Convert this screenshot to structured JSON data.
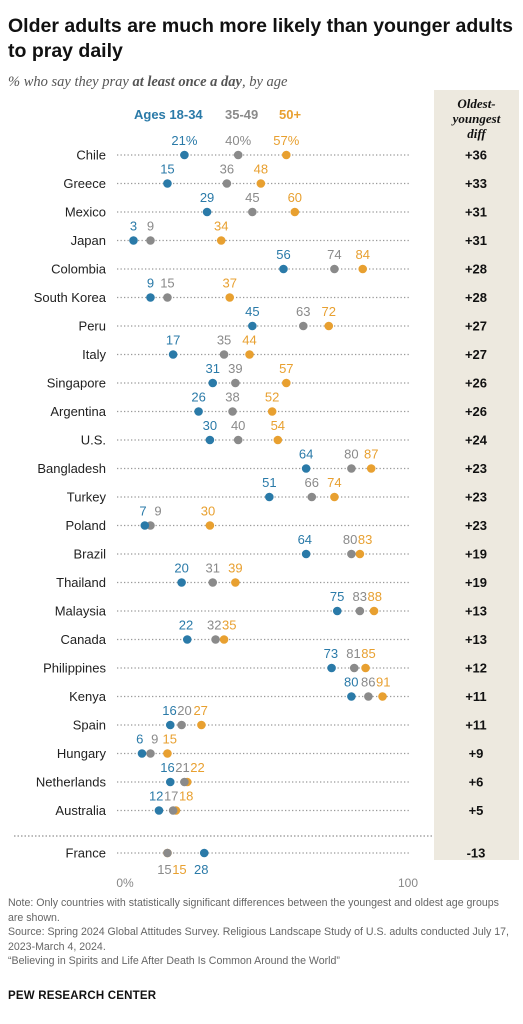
{
  "title": "Older adults are much more likely than younger adults to pray daily",
  "subtitle_pre": "% who say they pray ",
  "subtitle_bold": "at least once a day",
  "subtitle_post": ", by age",
  "diff_header": [
    "Oldest-",
    "youngest",
    "diff"
  ],
  "legend": [
    {
      "label": "Ages 18-34",
      "color": "#2a7aa8"
    },
    {
      "label": "35-49",
      "color": "#8a8a8a"
    },
    {
      "label": "50+",
      "color": "#e8a030"
    }
  ],
  "chart_data": {
    "type": "dot",
    "x_axis": {
      "min": 0,
      "max": 100,
      "tick_labels": [
        "0%",
        "100"
      ]
    },
    "series": [
      {
        "name": "Ages 18-34",
        "color": "#2a7aa8"
      },
      {
        "name": "35-49",
        "color": "#8a8a8a"
      },
      {
        "name": "50+",
        "color": "#e8a030"
      }
    ],
    "rows": [
      {
        "country": "Chile",
        "values": [
          21,
          40,
          57
        ],
        "diff": "+36",
        "pct": true
      },
      {
        "country": "Greece",
        "values": [
          15,
          36,
          48
        ],
        "diff": "+33"
      },
      {
        "country": "Mexico",
        "values": [
          29,
          45,
          60
        ],
        "diff": "+31"
      },
      {
        "country": "Japan",
        "values": [
          3,
          9,
          34
        ],
        "diff": "+31"
      },
      {
        "country": "Colombia",
        "values": [
          56,
          74,
          84
        ],
        "diff": "+28"
      },
      {
        "country": "South Korea",
        "values": [
          9,
          15,
          37
        ],
        "diff": "+28"
      },
      {
        "country": "Peru",
        "values": [
          45,
          63,
          72
        ],
        "diff": "+27"
      },
      {
        "country": "Italy",
        "values": [
          17,
          35,
          44
        ],
        "diff": "+27"
      },
      {
        "country": "Singapore",
        "values": [
          31,
          39,
          57
        ],
        "diff": "+26"
      },
      {
        "country": "Argentina",
        "values": [
          26,
          38,
          52
        ],
        "diff": "+26"
      },
      {
        "country": "U.S.",
        "values": [
          30,
          40,
          54
        ],
        "diff": "+24"
      },
      {
        "country": "Bangladesh",
        "values": [
          64,
          80,
          87
        ],
        "diff": "+23"
      },
      {
        "country": "Turkey",
        "values": [
          51,
          66,
          74
        ],
        "diff": "+23"
      },
      {
        "country": "Poland",
        "values": [
          7,
          9,
          30
        ],
        "diff": "+23"
      },
      {
        "country": "Brazil",
        "values": [
          64,
          80,
          83
        ],
        "diff": "+19"
      },
      {
        "country": "Thailand",
        "values": [
          20,
          31,
          39
        ],
        "diff": "+19"
      },
      {
        "country": "Malaysia",
        "values": [
          75,
          83,
          88
        ],
        "diff": "+13"
      },
      {
        "country": "Canada",
        "values": [
          22,
          32,
          35
        ],
        "diff": "+13"
      },
      {
        "country": "Philippines",
        "values": [
          73,
          81,
          85
        ],
        "diff": "+12"
      },
      {
        "country": "Kenya",
        "values": [
          80,
          86,
          91
        ],
        "diff": "+11"
      },
      {
        "country": "Spain",
        "values": [
          16,
          20,
          27
        ],
        "diff": "+11"
      },
      {
        "country": "Hungary",
        "values": [
          6,
          9,
          15
        ],
        "diff": "+9"
      },
      {
        "country": "Netherlands",
        "values": [
          16,
          21,
          22
        ],
        "diff": "+6"
      },
      {
        "country": "Australia",
        "values": [
          12,
          17,
          18
        ],
        "diff": "+5"
      },
      {
        "country": "France",
        "values": [
          28,
          15,
          15
        ],
        "diff": "-13",
        "labels_below": true
      }
    ]
  },
  "notes": [
    "Note: Only countries with statistically significant differences between the youngest and oldest age groups are shown.",
    "Source: Spring 2024 Global Attitudes Survey. Religious Landscape Study of U.S. adults conducted July 17, 2023-March 4, 2024.",
    "“Believing in Spirits and Life After Death Is Common Around the World”"
  ],
  "brand": "PEW RESEARCH CENTER"
}
